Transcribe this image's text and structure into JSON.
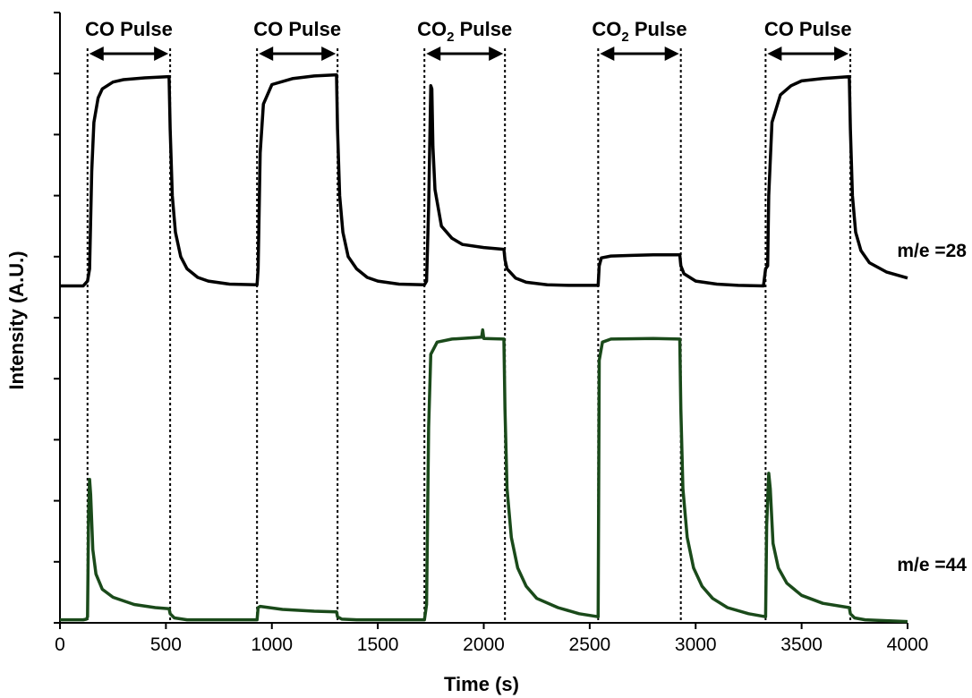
{
  "chart_data": {
    "type": "line",
    "title": "",
    "xlabel": "Time (s)",
    "ylabel": "Intensity (A.U.)",
    "xlim": [
      0,
      4000
    ],
    "ylim": [
      0,
      10
    ],
    "x_ticks": [
      0,
      500,
      1000,
      1500,
      2000,
      2500,
      3000,
      3500,
      4000
    ],
    "y_tick_count": 10,
    "y_tick_labels_shown": false,
    "grid": false,
    "pulses": [
      {
        "start": 130,
        "end": 520,
        "label": "CO Pulse",
        "gas": "CO"
      },
      {
        "start": 930,
        "end": 1310,
        "label": "CO Pulse",
        "gas": "CO"
      },
      {
        "start": 1720,
        "end": 2100,
        "label": "CO",
        "label_sub": "2",
        "label_rest": " Pulse",
        "gas": "CO2"
      },
      {
        "start": 2540,
        "end": 2930,
        "label": "CO",
        "label_sub": "2",
        "label_rest": " Pulse",
        "gas": "CO2"
      },
      {
        "start": 3330,
        "end": 3730,
        "label": "CO Pulse",
        "gas": "CO"
      }
    ],
    "series": [
      {
        "name": "m/e =28",
        "label": "m/e =28",
        "color": "#000000",
        "baseline": 5.52,
        "points": [
          [
            0,
            5.52
          ],
          [
            100,
            5.52
          ],
          [
            110,
            5.52
          ],
          [
            130,
            5.6
          ],
          [
            140,
            5.8
          ],
          [
            150,
            7.4
          ],
          [
            160,
            8.2
          ],
          [
            180,
            8.6
          ],
          [
            200,
            8.75
          ],
          [
            250,
            8.86
          ],
          [
            300,
            8.9
          ],
          [
            400,
            8.93
          ],
          [
            515,
            8.95
          ],
          [
            520,
            8.1
          ],
          [
            530,
            7.0
          ],
          [
            545,
            6.4
          ],
          [
            570,
            6.0
          ],
          [
            600,
            5.8
          ],
          [
            650,
            5.66
          ],
          [
            700,
            5.6
          ],
          [
            800,
            5.55
          ],
          [
            930,
            5.54
          ],
          [
            935,
            5.8
          ],
          [
            945,
            7.7
          ],
          [
            960,
            8.5
          ],
          [
            1000,
            8.82
          ],
          [
            1100,
            8.92
          ],
          [
            1200,
            8.96
          ],
          [
            1305,
            8.98
          ],
          [
            1310,
            8.1
          ],
          [
            1320,
            7.0
          ],
          [
            1335,
            6.4
          ],
          [
            1360,
            6.0
          ],
          [
            1400,
            5.8
          ],
          [
            1450,
            5.66
          ],
          [
            1500,
            5.6
          ],
          [
            1600,
            5.55
          ],
          [
            1720,
            5.54
          ],
          [
            1730,
            5.6
          ],
          [
            1740,
            6.8
          ],
          [
            1750,
            8.8
          ],
          [
            1755,
            8.75
          ],
          [
            1760,
            7.8
          ],
          [
            1770,
            7.1
          ],
          [
            1800,
            6.5
          ],
          [
            1850,
            6.3
          ],
          [
            1900,
            6.2
          ],
          [
            2000,
            6.15
          ],
          [
            2095,
            6.12
          ],
          [
            2100,
            5.95
          ],
          [
            2110,
            5.8
          ],
          [
            2150,
            5.65
          ],
          [
            2200,
            5.58
          ],
          [
            2300,
            5.54
          ],
          [
            2400,
            5.53
          ],
          [
            2540,
            5.53
          ],
          [
            2545,
            5.85
          ],
          [
            2555,
            5.98
          ],
          [
            2600,
            6.01
          ],
          [
            2700,
            6.02
          ],
          [
            2800,
            6.03
          ],
          [
            2925,
            6.03
          ],
          [
            2930,
            5.85
          ],
          [
            2945,
            5.72
          ],
          [
            3000,
            5.6
          ],
          [
            3100,
            5.55
          ],
          [
            3200,
            5.53
          ],
          [
            3320,
            5.52
          ],
          [
            3330,
            5.8
          ],
          [
            3340,
            5.85
          ],
          [
            3345,
            7.0
          ],
          [
            3360,
            8.2
          ],
          [
            3400,
            8.65
          ],
          [
            3450,
            8.8
          ],
          [
            3500,
            8.88
          ],
          [
            3600,
            8.92
          ],
          [
            3725,
            8.95
          ],
          [
            3730,
            8.1
          ],
          [
            3740,
            7.0
          ],
          [
            3755,
            6.4
          ],
          [
            3780,
            6.1
          ],
          [
            3820,
            5.9
          ],
          [
            3900,
            5.75
          ],
          [
            4000,
            5.65
          ]
        ]
      },
      {
        "name": "m/e =44",
        "label": "m/e =44",
        "color": "#1a4a1a",
        "baseline": 0.05,
        "points": [
          [
            0,
            0.05
          ],
          [
            110,
            0.05
          ],
          [
            125,
            0.06
          ],
          [
            130,
            0.1
          ],
          [
            135,
            1.8
          ],
          [
            140,
            2.35
          ],
          [
            145,
            2.1
          ],
          [
            155,
            1.2
          ],
          [
            170,
            0.8
          ],
          [
            200,
            0.55
          ],
          [
            250,
            0.42
          ],
          [
            350,
            0.3
          ],
          [
            450,
            0.25
          ],
          [
            515,
            0.23
          ],
          [
            520,
            0.15
          ],
          [
            540,
            0.08
          ],
          [
            600,
            0.05
          ],
          [
            930,
            0.05
          ],
          [
            935,
            0.25
          ],
          [
            945,
            0.27
          ],
          [
            1050,
            0.22
          ],
          [
            1200,
            0.19
          ],
          [
            1305,
            0.18
          ],
          [
            1310,
            0.1
          ],
          [
            1330,
            0.06
          ],
          [
            1400,
            0.05
          ],
          [
            1720,
            0.05
          ],
          [
            1730,
            0.3
          ],
          [
            1740,
            3.2
          ],
          [
            1750,
            4.4
          ],
          [
            1780,
            4.6
          ],
          [
            1850,
            4.65
          ],
          [
            1990,
            4.68
          ],
          [
            1995,
            4.8
          ],
          [
            2000,
            4.66
          ],
          [
            2095,
            4.65
          ],
          [
            2100,
            3.5
          ],
          [
            2110,
            2.2
          ],
          [
            2130,
            1.4
          ],
          [
            2160,
            0.9
          ],
          [
            2200,
            0.6
          ],
          [
            2250,
            0.4
          ],
          [
            2350,
            0.25
          ],
          [
            2450,
            0.15
          ],
          [
            2540,
            0.1
          ],
          [
            2545,
            4.3
          ],
          [
            2560,
            4.6
          ],
          [
            2600,
            4.65
          ],
          [
            2800,
            4.66
          ],
          [
            2925,
            4.65
          ],
          [
            2930,
            3.5
          ],
          [
            2940,
            2.2
          ],
          [
            2960,
            1.4
          ],
          [
            2990,
            0.9
          ],
          [
            3030,
            0.6
          ],
          [
            3080,
            0.4
          ],
          [
            3150,
            0.25
          ],
          [
            3250,
            0.15
          ],
          [
            3330,
            0.1
          ],
          [
            3335,
            1.6
          ],
          [
            3345,
            2.45
          ],
          [
            3352,
            2.2
          ],
          [
            3365,
            1.3
          ],
          [
            3390,
            0.9
          ],
          [
            3430,
            0.65
          ],
          [
            3500,
            0.45
          ],
          [
            3600,
            0.32
          ],
          [
            3725,
            0.25
          ],
          [
            3730,
            0.15
          ],
          [
            3750,
            0.08
          ],
          [
            3800,
            0.05
          ],
          [
            4000,
            0.02
          ]
        ]
      }
    ]
  }
}
